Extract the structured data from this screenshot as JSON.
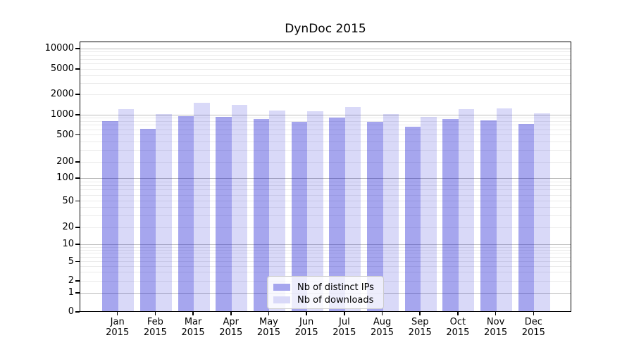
{
  "figure": {
    "title": "DynDoc 2015"
  },
  "chart_data": {
    "type": "bar",
    "title": "DynDoc 2015",
    "yscale": "symlog",
    "ylim": [
      0,
      10000
    ],
    "grid": true,
    "legend_position": "lower center",
    "categories": [
      "Jan",
      "Feb",
      "Mar",
      "Apr",
      "May",
      "Jun",
      "Jul",
      "Aug",
      "Sep",
      "Oct",
      "Nov",
      "Dec"
    ],
    "category_year": "2015",
    "yticks": [
      0,
      1,
      2,
      5,
      10,
      20,
      50,
      100,
      200,
      500,
      1000,
      2000,
      5000,
      10000
    ],
    "series": [
      {
        "name": "Nb of distinct IPs",
        "key": "distinct-ips",
        "fill": "rgba(0,0,205,0.35)",
        "swatch_color": "#a6a6ee",
        "values": [
          780,
          600,
          930,
          910,
          840,
          770,
          890,
          770,
          655,
          845,
          800,
          710
        ]
      },
      {
        "name": "Nb of downloads",
        "key": "downloads",
        "fill": "rgba(0,0,205,0.15)",
        "swatch_color": "#d9d9f8",
        "values": [
          1180,
          1010,
          1470,
          1370,
          1130,
          1100,
          1290,
          1010,
          920,
          1190,
          1210,
          1030
        ]
      }
    ],
    "colors": {
      "major_gridline": "#bcbcbc",
      "minor_gridline": "#ebebeb",
      "axis": "#000000"
    }
  }
}
